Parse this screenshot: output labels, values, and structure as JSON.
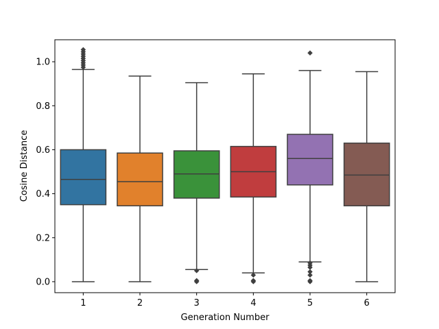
{
  "chart_data": {
    "type": "box",
    "title": "",
    "xlabel": "Generation Number",
    "ylabel": "Cosine Distance",
    "categories": [
      "1",
      "2",
      "3",
      "4",
      "5",
      "6"
    ],
    "ylim": [
      -0.05,
      1.1
    ],
    "yticks": [
      0.0,
      0.2,
      0.4,
      0.6,
      0.8,
      1.0
    ],
    "ytick_labels": [
      "0.0",
      "0.2",
      "0.4",
      "0.6",
      "0.8",
      "1.0"
    ],
    "grid": false,
    "series": [
      {
        "category": "1",
        "color": "#3274a1",
        "whisker_low": 0.0,
        "q1": 0.35,
        "median": 0.465,
        "q3": 0.6,
        "whisker_high": 0.965,
        "outliers": [
          0.975,
          0.985,
          0.995,
          1.005,
          1.015,
          1.025,
          1.035,
          1.045,
          1.055
        ]
      },
      {
        "category": "2",
        "color": "#e1812c",
        "whisker_low": 0.0,
        "q1": 0.345,
        "median": 0.455,
        "q3": 0.585,
        "whisker_high": 0.935,
        "outliers": []
      },
      {
        "category": "3",
        "color": "#3a923a",
        "whisker_low": 0.055,
        "q1": 0.38,
        "median": 0.49,
        "q3": 0.595,
        "whisker_high": 0.905,
        "outliers": [
          0.05,
          0.0,
          0.005
        ]
      },
      {
        "category": "4",
        "color": "#c03d3e",
        "whisker_low": 0.04,
        "q1": 0.385,
        "median": 0.5,
        "q3": 0.615,
        "whisker_high": 0.945,
        "outliers": [
          0.03,
          0.005,
          0.0
        ]
      },
      {
        "category": "5",
        "color": "#9372b2",
        "whisker_low": 0.09,
        "q1": 0.44,
        "median": 0.56,
        "q3": 0.67,
        "whisker_high": 0.96,
        "outliers": [
          1.04,
          0.085,
          0.075,
          0.065,
          0.045,
          0.03,
          0.005,
          0.0
        ]
      },
      {
        "category": "6",
        "color": "#845b53",
        "whisker_low": 0.0,
        "q1": 0.345,
        "median": 0.485,
        "q3": 0.63,
        "whisker_high": 0.955,
        "outliers": []
      }
    ]
  }
}
